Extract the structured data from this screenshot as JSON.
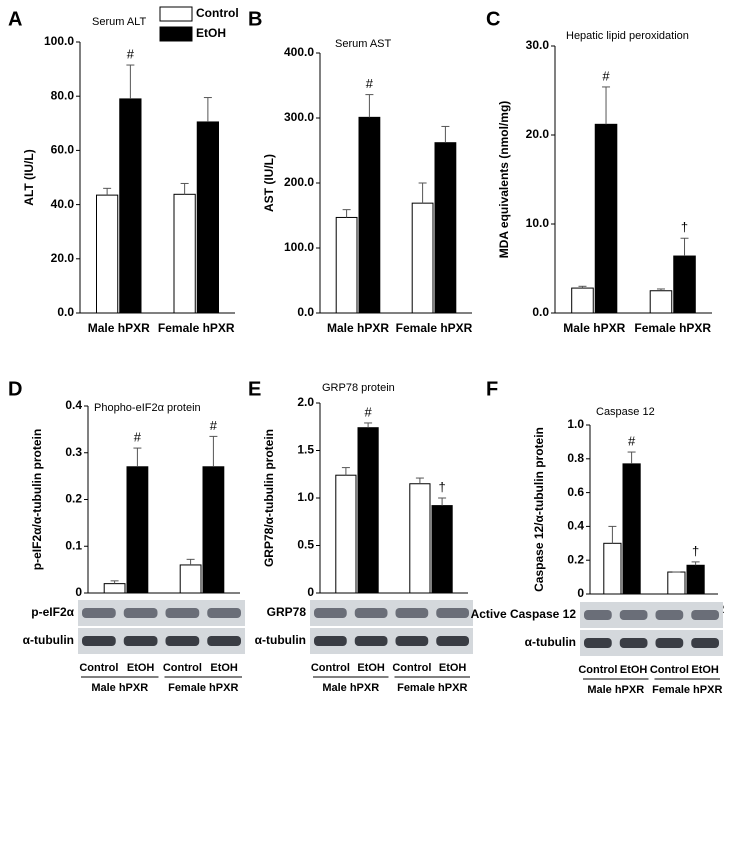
{
  "chart_data": [
    {
      "type": "bar",
      "panel": "A",
      "title": "Serum ALT",
      "y_label": "ALT (IU/L)",
      "legend": "top-right",
      "categories": [
        "Male hPXR",
        "Female hPXR"
      ],
      "series": [
        {
          "name": "Control",
          "color": "#ffffff",
          "values": [
            43.5,
            43.8
          ],
          "errors": [
            2.5,
            4
          ],
          "annotations": [
            null,
            null
          ]
        },
        {
          "name": "EtOH",
          "color": "#000000",
          "values": [
            79,
            70.5
          ],
          "errors": [
            12.5,
            9
          ],
          "annotations": [
            "#",
            null
          ]
        }
      ],
      "ylim": [
        0,
        100
      ],
      "yticks": [
        {
          "value": 0,
          "label": "0.0"
        },
        {
          "value": 20,
          "label": "20.0"
        },
        {
          "value": 40,
          "label": "40.0"
        },
        {
          "value": 60,
          "label": "60.0"
        },
        {
          "value": 80,
          "label": "80.0"
        },
        {
          "value": 100,
          "label": "100.0"
        }
      ]
    },
    {
      "type": "bar",
      "panel": "B",
      "title": "Serum AST",
      "y_label": "AST (IU/L)",
      "categories": [
        "Male hPXR",
        "Female hPXR"
      ],
      "series": [
        {
          "name": "Control",
          "color": "#ffffff",
          "values": [
            147,
            169
          ],
          "errors": [
            12,
            31
          ],
          "annotations": [
            null,
            null
          ]
        },
        {
          "name": "EtOH",
          "color": "#000000",
          "values": [
            301,
            262
          ],
          "errors": [
            35,
            25
          ],
          "annotations": [
            "#",
            null
          ]
        }
      ],
      "ylim": [
        0,
        400
      ],
      "yticks": [
        {
          "value": 0,
          "label": "0.0"
        },
        {
          "value": 100,
          "label": "100.0"
        },
        {
          "value": 200,
          "label": "200.0"
        },
        {
          "value": 300,
          "label": "300.0"
        },
        {
          "value": 400,
          "label": "400.0"
        }
      ]
    },
    {
      "type": "bar",
      "panel": "C",
      "title": "Hepatic lipid peroxidation",
      "y_label": "MDA equivalents (nmol/mg)",
      "categories": [
        "Male hPXR",
        "Female hPXR"
      ],
      "series": [
        {
          "name": "Control",
          "color": "#ffffff",
          "values": [
            2.8,
            2.5
          ],
          "errors": [
            0.2,
            0.2
          ],
          "annotations": [
            null,
            null
          ]
        },
        {
          "name": "EtOH",
          "color": "#000000",
          "values": [
            21.2,
            6.4
          ],
          "errors": [
            4.2,
            2
          ],
          "annotations": [
            "#",
            "†"
          ]
        }
      ],
      "ylim": [
        0,
        30
      ],
      "yticks": [
        {
          "value": 0,
          "label": "0.0"
        },
        {
          "value": 10,
          "label": "10.0"
        },
        {
          "value": 20,
          "label": "20.0"
        },
        {
          "value": 30,
          "label": "30.0"
        }
      ]
    },
    {
      "type": "bar",
      "panel": "D",
      "title": "Phopho-eIF2α protein",
      "y_label": "p-eIF2α/α-tubulin protein",
      "categories": [
        "Male hPXR",
        "Female hPXR"
      ],
      "series": [
        {
          "name": "Control",
          "color": "#ffffff",
          "values": [
            0.02,
            0.06
          ],
          "errors": [
            0.006,
            0.012
          ],
          "annotations": [
            null,
            null
          ]
        },
        {
          "name": "EtOH",
          "color": "#000000",
          "values": [
            0.27,
            0.27
          ],
          "errors": [
            0.04,
            0.065
          ],
          "annotations": [
            "#",
            "#"
          ]
        }
      ],
      "ylim": [
        0,
        0.4
      ],
      "yticks": [
        0,
        0.1,
        0.2,
        0.3,
        0.4
      ],
      "blot_rows": [
        "p-eIF2α",
        "α-tubulin"
      ],
      "blot_lanes": [
        "Control",
        "EtOH",
        "Control",
        "EtOH"
      ]
    },
    {
      "type": "bar",
      "panel": "E",
      "title": "GRP78 protein",
      "y_label": "GRP78/α-tubulin protein",
      "categories": [
        "Male hPXR",
        "Female hPXR"
      ],
      "series": [
        {
          "name": "Control",
          "color": "#ffffff",
          "values": [
            1.24,
            1.15
          ],
          "errors": [
            0.08,
            0.06
          ],
          "annotations": [
            null,
            null
          ]
        },
        {
          "name": "EtOH",
          "color": "#000000",
          "values": [
            1.74,
            0.92
          ],
          "errors": [
            0.05,
            0.08
          ],
          "annotations": [
            "#",
            "†"
          ]
        }
      ],
      "ylim": [
        0,
        2
      ],
      "yticks": [
        0,
        0.5,
        {
          "value": 1,
          "label": "1.0"
        },
        1.5,
        {
          "value": 2,
          "label": "2.0"
        }
      ],
      "blot_rows": [
        "GRP78",
        "α-tubulin"
      ],
      "blot_lanes": [
        "Control",
        "EtOH",
        "Control",
        "EtOH"
      ]
    },
    {
      "type": "bar",
      "panel": "F",
      "title": "Caspase 12",
      "y_label": "Caspase 12/α-tubulin protein",
      "categories": [
        "Male hPXR",
        "Female hPXR"
      ],
      "series": [
        {
          "name": "Control",
          "color": "#ffffff",
          "values": [
            0.3,
            0.13
          ],
          "errors": [
            0.1,
            0
          ],
          "annotations": [
            null,
            null
          ]
        },
        {
          "name": "EtOH",
          "color": "#000000",
          "values": [
            0.77,
            0.17
          ],
          "errors": [
            0.07,
            0.02
          ],
          "annotations": [
            "#",
            "†"
          ]
        }
      ],
      "ylim": [
        0,
        1
      ],
      "yticks": [
        0,
        0.2,
        0.4,
        0.6,
        0.8,
        {
          "value": 1,
          "label": "1.0"
        }
      ],
      "blot_rows": [
        "Active Caspase 12",
        "α-tubulin"
      ],
      "blot_lanes": [
        "Control",
        "EtOH",
        "Control",
        "EtOH"
      ]
    }
  ]
}
